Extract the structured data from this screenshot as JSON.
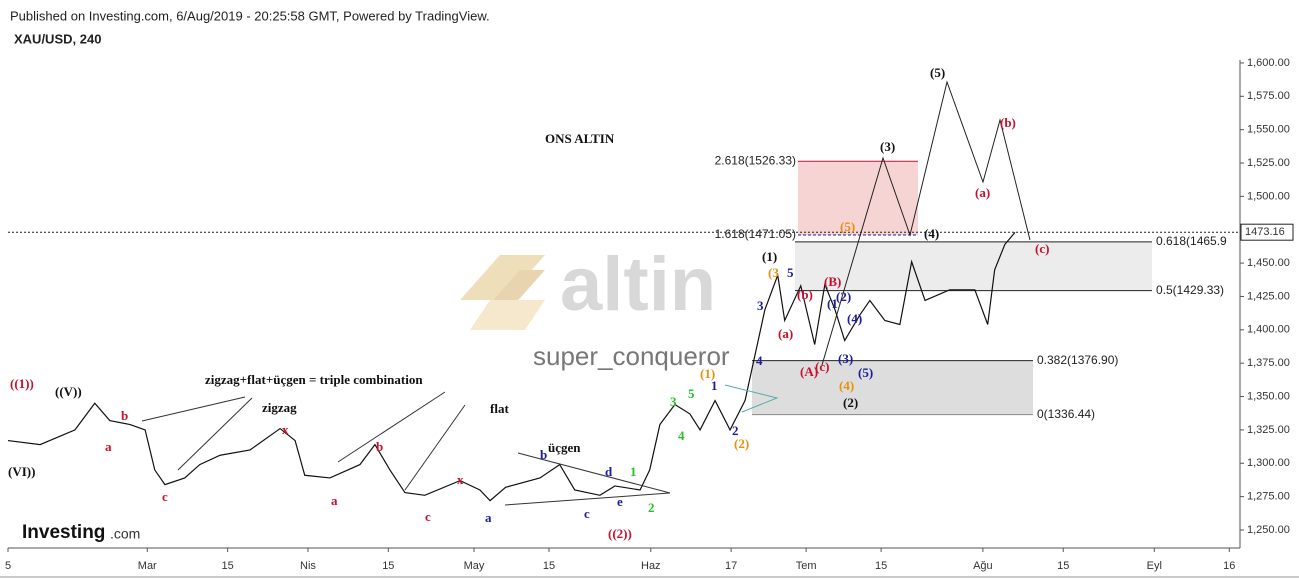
{
  "chart_data": {
    "type": "line",
    "title": "XAU/USD, 240",
    "subtitle": "Published on Investing.com, 6/Aug/2019 - 20:25:58 GMT, Powered by TradingView.",
    "watermark": "altin",
    "author": "super_conqueror",
    "logo": "Investing",
    "logo_suffix": ".com",
    "xlim": [
      0,
      230
    ],
    "xticks": [
      {
        "value": 0,
        "label": "5"
      },
      {
        "value": 26,
        "label": "Mar"
      },
      {
        "value": 41,
        "label": "15"
      },
      {
        "value": 56,
        "label": "Nis"
      },
      {
        "value": 71,
        "label": "15"
      },
      {
        "value": 87,
        "label": "May"
      },
      {
        "value": 101,
        "label": "15"
      },
      {
        "value": 120,
        "label": "Haz"
      },
      {
        "value": 135,
        "label": "17"
      },
      {
        "value": 149,
        "label": "Tem"
      },
      {
        "value": 163,
        "label": "15"
      },
      {
        "value": 182,
        "label": "Ağu"
      },
      {
        "value": 197,
        "label": "15"
      },
      {
        "value": 214,
        "label": "Eyl"
      },
      {
        "value": 228,
        "label": "16"
      }
    ],
    "ylim": [
      1236.5,
      1602.2
    ],
    "yticks": [
      {
        "value": 1250,
        "label": "1,250.00"
      },
      {
        "value": 1275,
        "label": "1,275.00"
      },
      {
        "value": 1300,
        "label": "1,300.00"
      },
      {
        "value": 1325,
        "label": "1,325.00"
      },
      {
        "value": 1350,
        "label": "1,350.00"
      },
      {
        "value": 1375,
        "label": "1,375.00"
      },
      {
        "value": 1400,
        "label": "1,400.00"
      },
      {
        "value": 1425,
        "label": "1,425.00"
      },
      {
        "value": 1450,
        "label": "1,450.00"
      },
      {
        "value": 1475,
        "label": "1,475.00"
      },
      {
        "value": 1500,
        "label": "1,500.00"
      },
      {
        "value": 1525,
        "label": "1,525.00"
      },
      {
        "value": 1550,
        "label": "1,550.00"
      },
      {
        "value": 1575,
        "label": "1,575.00"
      },
      {
        "value": 1600,
        "label": "1,600.00"
      }
    ],
    "last_price": 1473.16,
    "series": [
      {
        "name": "XAU/USD",
        "color": "#111111",
        "x": [
          0,
          6,
          12.5,
          16.2,
          19,
          22.8,
          25.6,
          27.4,
          29.3,
          33,
          35.8,
          39.6,
          45.2,
          50.8,
          53.6,
          55.4,
          60.1,
          65.7,
          68.5,
          71.3,
          74.1,
          77.8,
          84.4,
          88.1,
          90,
          92.9,
          99.3,
          103,
          105.8,
          110.5,
          113.3,
          118,
          119.8,
          121.7,
          124.5,
          127.3,
          129.2,
          132,
          134.8,
          137.6,
          141.3,
          143.7,
          145,
          148,
          150.6,
          152.5,
          154.4,
          156.2,
          159,
          160.9,
          163.7,
          166.5,
          168.7,
          171.2,
          175.8,
          180.5,
          182.9,
          184.2,
          186.1,
          188
        ],
        "values": [
          1317,
          1314,
          1325,
          1345,
          1332,
          1329,
          1325,
          1295,
          1284,
          1289,
          1299,
          1306,
          1310,
          1326,
          1317,
          1291,
          1289,
          1299,
          1314,
          1295,
          1278,
          1276,
          1287,
          1280,
          1272,
          1282,
          1289,
          1299,
          1280,
          1276,
          1283,
          1280,
          1295,
          1329,
          1344,
          1337,
          1325,
          1347,
          1325,
          1347,
          1415,
          1441,
          1407,
          1433,
          1389,
          1434,
          1415,
          1392,
          1411,
          1422,
          1407,
          1404,
          1451,
          1422,
          1430,
          1430,
          1404,
          1445,
          1464,
          1473
        ]
      }
    ],
    "levels": [
      {
        "value": 1526.33,
        "label": "2.618(1526.33)"
      },
      {
        "value": 1471.05,
        "label": "1.618(1471.05)"
      },
      {
        "value": 1465.9,
        "label": "0.618(1465.9"
      },
      {
        "value": 1429.33,
        "label": "0.5(1429.33)"
      },
      {
        "value": 1376.9,
        "label": "0.382(1376.90)"
      },
      {
        "value": 1336.44,
        "label": "0(1336.44)"
      }
    ],
    "annotations": [
      "ONS ALTIN",
      "((1))",
      "((V))",
      "(VI))",
      "b",
      "a",
      "c",
      "zigzag+flat+üçgen = triple combination",
      "zigzag",
      "x",
      "b",
      "a",
      "c",
      "flat",
      "x",
      "a",
      "üçgen",
      "b",
      "d",
      "c",
      "e",
      "1",
      "2",
      "((2))",
      "3",
      "5",
      "4",
      "(1)",
      "1",
      "2",
      "(2)",
      "3",
      "4",
      "(3",
      "5",
      "(1)",
      "(b)",
      "(a)",
      "(A)",
      "(c)",
      "(B)",
      "(1",
      "(2)",
      "(4)",
      "(3)",
      "(5)",
      "(4)",
      "(2)",
      "(5)",
      "(3)",
      "(4)",
      "(5)",
      "(a)",
      "(b)",
      "(c)"
    ]
  }
}
